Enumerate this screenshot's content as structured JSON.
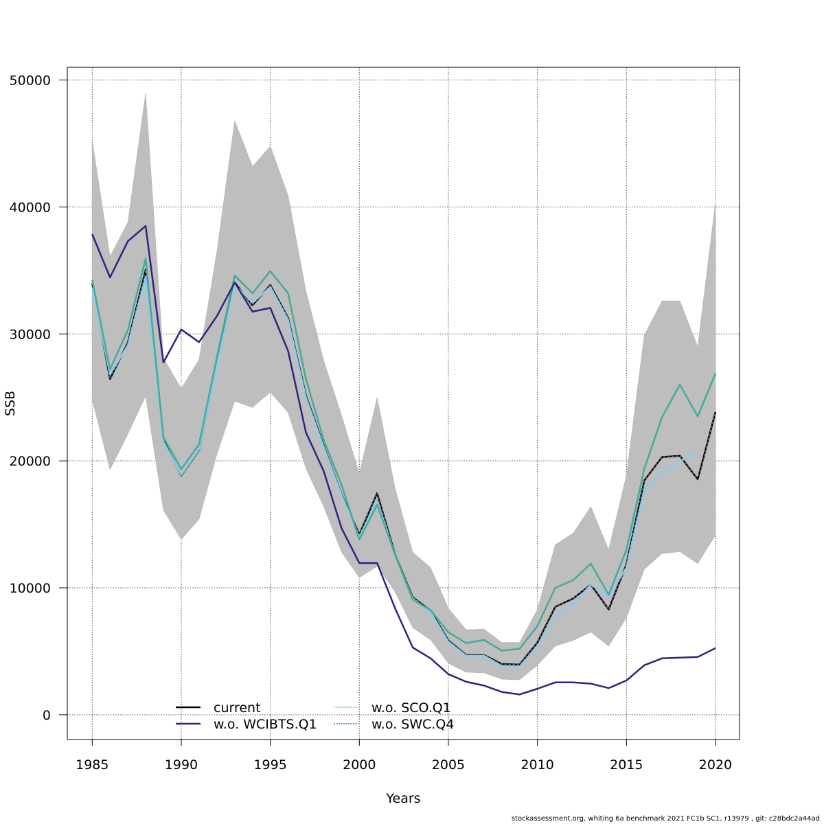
{
  "chart_data": {
    "type": "line",
    "title": "",
    "xlabel": "Years",
    "ylabel": "SSB",
    "xlim": [
      1983.6,
      2021.35
    ],
    "ylim": [
      -1950,
      51000
    ],
    "grid": true,
    "x_ticks": [
      1985,
      1990,
      1995,
      2000,
      2005,
      2010,
      2015,
      2020
    ],
    "x_tick_labels": [
      "1985",
      "1990",
      "1995",
      "2000",
      "2005",
      "2010",
      "2015",
      "2020"
    ],
    "y_ticks": [
      0,
      10000,
      20000,
      30000,
      40000,
      50000
    ],
    "y_tick_labels": [
      "0",
      "10000",
      "20000",
      "30000",
      "40000",
      "50000"
    ],
    "legend_placement": "bottom-center",
    "x": [
      1985,
      1986,
      1987,
      1988,
      1989,
      1990,
      1991,
      1992,
      1993,
      1994,
      1995,
      1996,
      1997,
      1998,
      1999,
      2000,
      2001,
      2002,
      2003,
      2004,
      2005,
      2006,
      2007,
      2008,
      2009,
      2010,
      2011,
      2012,
      2013,
      2014,
      2015,
      2016,
      2017,
      2018,
      2019,
      2020
    ],
    "confidence_band": {
      "name": "current 95% CI",
      "color": "#bebebe",
      "upper": [
        45250,
        36100,
        38800,
        49000,
        28100,
        25700,
        28000,
        36500,
        46800,
        43200,
        44800,
        40900,
        33400,
        27900,
        23600,
        19000,
        25000,
        17900,
        12800,
        11600,
        8400,
        6700,
        6750,
        5700,
        5700,
        8300,
        13400,
        14300,
        16400,
        13000,
        18900,
        29900,
        32600,
        32600,
        29000,
        40400
      ],
      "lower": [
        24800,
        19300,
        22100,
        25100,
        16100,
        13800,
        15400,
        20500,
        24700,
        24200,
        25400,
        23800,
        19400,
        16400,
        12800,
        10800,
        11700,
        9700,
        6850,
        5900,
        4050,
        3350,
        3300,
        2800,
        2750,
        3900,
        5400,
        5850,
        6500,
        5400,
        7650,
        11450,
        12700,
        12850,
        11900,
        14150
      ]
    },
    "series": [
      {
        "name": "current",
        "color": "#000000",
        "dash": "solid",
        "values": [
          34000,
          26450,
          29300,
          35050,
          21600,
          18850,
          20850,
          27600,
          34050,
          32250,
          33850,
          31250,
          25150,
          21200,
          17350,
          14200,
          17450,
          12650,
          9250,
          8200,
          5850,
          4700,
          4700,
          4000,
          3950,
          5700,
          8500,
          9150,
          10250,
          8300,
          11850,
          18450,
          20300,
          20400,
          18550,
          23850
        ]
      },
      {
        "name": "w.o. WCIBTS.Q1",
        "color": "#2d2383",
        "dash": "solid",
        "values": [
          37850,
          34450,
          37300,
          38500,
          27750,
          30350,
          29350,
          31400,
          34050,
          31750,
          32050,
          28650,
          22250,
          19200,
          14700,
          11950,
          11950,
          8400,
          5300,
          4450,
          3200,
          2600,
          2300,
          1800,
          1600,
          2050,
          2550,
          2550,
          2450,
          2100,
          2700,
          3900,
          4450,
          4500,
          4550,
          5250
        ]
      },
      {
        "name": "w.o. SCO.Q1",
        "color": "#88ccee",
        "dash": "dotted",
        "values": [
          33650,
          26800,
          29100,
          34500,
          21500,
          18900,
          20900,
          27500,
          33900,
          32450,
          33700,
          31100,
          25000,
          21100,
          17300,
          14000,
          16900,
          12600,
          9150,
          8100,
          5750,
          4650,
          4650,
          3850,
          3800,
          5400,
          7700,
          8700,
          10250,
          9350,
          11600,
          17750,
          19050,
          20000,
          20600,
          null
        ]
      },
      {
        "name": "w.o. SWC.Q4",
        "color": "#44aa99",
        "dash": "dotted",
        "values": [
          34250,
          27200,
          30300,
          35950,
          21850,
          19350,
          21300,
          28150,
          34600,
          33200,
          34950,
          33200,
          26450,
          21650,
          18100,
          13800,
          16550,
          12650,
          9050,
          8250,
          6500,
          5650,
          5900,
          5050,
          5200,
          7000,
          10000,
          10600,
          11900,
          9450,
          13000,
          19400,
          23450,
          26000,
          23500,
          26900
        ]
      }
    ]
  },
  "footer": {
    "text": "stockassessment.org, whiting 6a benchmark 2021 FC1b SC1, r13979 , git: c28bdc2a44ad"
  }
}
